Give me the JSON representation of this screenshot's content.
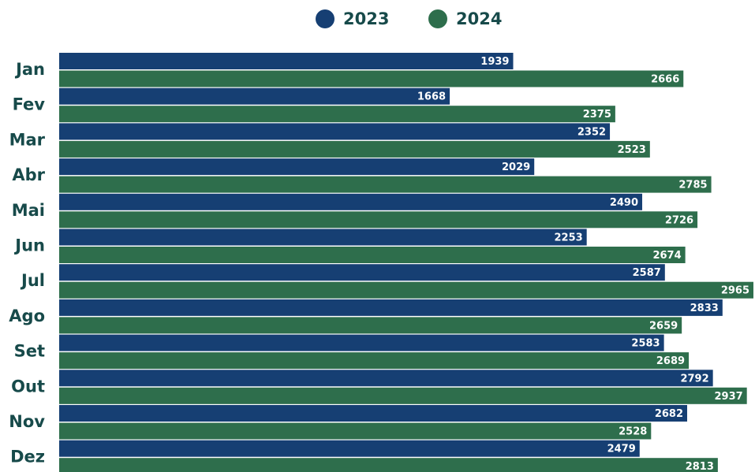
{
  "chart_data": {
    "type": "bar",
    "orientation": "horizontal",
    "categories": [
      "Jan",
      "Fev",
      "Mar",
      "Abr",
      "Mai",
      "Jun",
      "Jul",
      "Ago",
      "Set",
      "Out",
      "Nov",
      "Dez"
    ],
    "series": [
      {
        "name": "2023",
        "color": "#163f73",
        "values": [
          1939,
          1668,
          2352,
          2029,
          2490,
          2253,
          2587,
          2833,
          2583,
          2792,
          2682,
          2479
        ]
      },
      {
        "name": "2024",
        "color": "#2e6e4c",
        "values": [
          2666,
          2375,
          2523,
          2785,
          2726,
          2674,
          2965,
          2659,
          2689,
          2937,
          2528,
          2813
        ]
      }
    ],
    "legend": "top"
  }
}
